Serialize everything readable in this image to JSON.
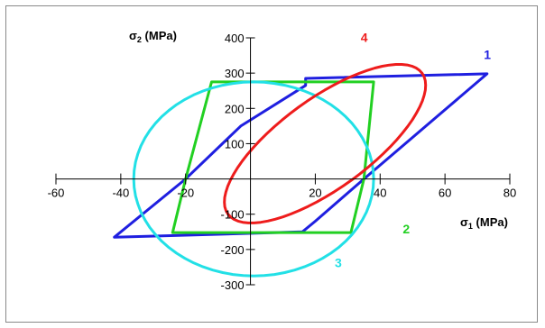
{
  "chart_data": {
    "type": "line",
    "title": "",
    "xlabel_parts": {
      "symbol": "σ",
      "sub": "1",
      "unit": " (MPa)"
    },
    "ylabel_parts": {
      "symbol": "σ",
      "sub": "2",
      "unit": " (MPa)"
    },
    "xlim": [
      -60,
      80
    ],
    "ylim": [
      -300,
      400
    ],
    "x_ticks": [
      -60,
      -40,
      -20,
      20,
      40,
      60,
      80
    ],
    "y_ticks": [
      -300,
      -200,
      -100,
      100,
      200,
      300,
      400
    ],
    "grid": false,
    "series": [
      {
        "name": "1",
        "color": "#1f1fe0",
        "points": [
          [
            -20,
            0
          ],
          [
            -3,
            150
          ],
          [
            17,
            265
          ],
          [
            17,
            285
          ],
          [
            73,
            298
          ],
          [
            35,
            0
          ],
          [
            20,
            -120
          ],
          [
            16,
            -150
          ],
          [
            -42,
            -165
          ],
          [
            -20,
            0
          ]
        ]
      },
      {
        "name": "2",
        "color": "#22d022",
        "points": [
          [
            -12,
            275
          ],
          [
            38,
            275
          ],
          [
            35,
            0
          ],
          [
            31,
            -152
          ],
          [
            -24,
            -152
          ],
          [
            -20,
            0
          ],
          [
            -12,
            275
          ]
        ]
      },
      {
        "name": "3",
        "color": "#22e0e6",
        "shape": "ellipse",
        "center": [
          1,
          0
        ],
        "semi_axes": [
          37,
          275
        ]
      },
      {
        "name": "4",
        "color": "#ee1c1c",
        "shape": "ellipse",
        "center": [
          23,
          100
        ],
        "semi_axes_rotated": {
          "major": 300,
          "minor": 110
        },
        "rotated_points": [
          [
            -20,
            0
          ],
          [
            -3,
            -150
          ],
          [
            35,
            0
          ],
          [
            50,
            360
          ]
        ]
      }
    ]
  }
}
